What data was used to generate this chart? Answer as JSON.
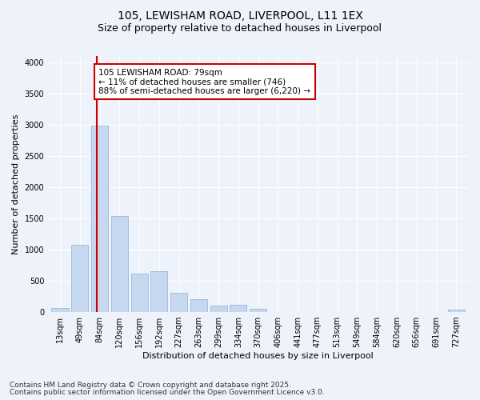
{
  "title_line1": "105, LEWISHAM ROAD, LIVERPOOL, L11 1EX",
  "title_line2": "Size of property relative to detached houses in Liverpool",
  "xlabel": "Distribution of detached houses by size in Liverpool",
  "ylabel": "Number of detached properties",
  "categories": [
    "13sqm",
    "49sqm",
    "84sqm",
    "120sqm",
    "156sqm",
    "192sqm",
    "227sqm",
    "263sqm",
    "299sqm",
    "334sqm",
    "370sqm",
    "406sqm",
    "441sqm",
    "477sqm",
    "513sqm",
    "549sqm",
    "584sqm",
    "620sqm",
    "656sqm",
    "691sqm",
    "727sqm"
  ],
  "values": [
    70,
    1080,
    2980,
    1540,
    620,
    660,
    310,
    205,
    100,
    110,
    50,
    0,
    0,
    0,
    0,
    0,
    0,
    0,
    0,
    0,
    40
  ],
  "bar_color": "#c5d8f0",
  "bar_edge_color": "#8ab0d8",
  "property_line_x": 1.85,
  "annotation_text": "105 LEWISHAM ROAD: 79sqm\n← 11% of detached houses are smaller (746)\n88% of semi-detached houses are larger (6,220) →",
  "annotation_box_color": "#ffffff",
  "annotation_box_edge_color": "#cc0000",
  "red_line_color": "#cc0000",
  "ylim": [
    0,
    4100
  ],
  "yticks": [
    0,
    500,
    1000,
    1500,
    2000,
    2500,
    3000,
    3500,
    4000
  ],
  "footer_line1": "Contains HM Land Registry data © Crown copyright and database right 2025.",
  "footer_line2": "Contains public sector information licensed under the Open Government Licence v3.0.",
  "bg_color": "#eef2fa",
  "plot_bg_color": "#eef2fa",
  "grid_color": "#ffffff",
  "title_fontsize": 10,
  "subtitle_fontsize": 9,
  "label_fontsize": 8,
  "tick_fontsize": 7,
  "annotation_fontsize": 7.5,
  "footer_fontsize": 6.5
}
